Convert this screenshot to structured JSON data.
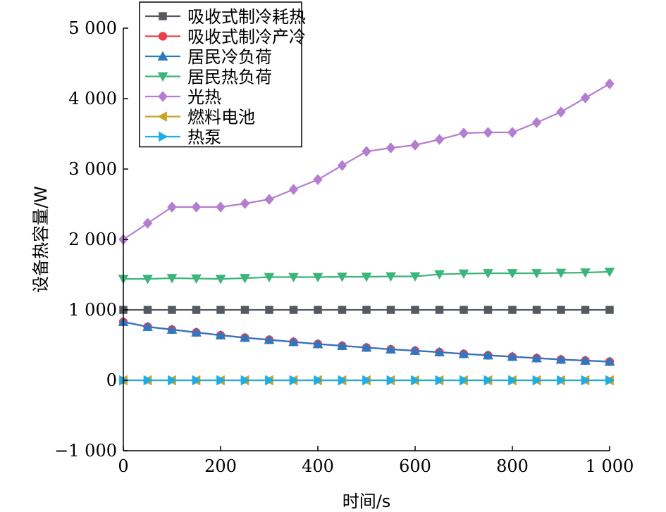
{
  "chart_data": {
    "type": "line",
    "title": "",
    "xlabel": "时间/s",
    "ylabel": "设备热容量/W",
    "xlim": [
      0,
      1000
    ],
    "ylim": [
      -1000,
      5000
    ],
    "xticks": [
      0,
      200,
      400,
      600,
      800,
      1000
    ],
    "xtick_labels": [
      "0",
      "200",
      "400",
      "600",
      "800",
      "1 000"
    ],
    "yticks": [
      -1000,
      0,
      1000,
      2000,
      3000,
      4000,
      5000
    ],
    "ytick_labels": [
      "−1 000",
      "0",
      "1 000",
      "2 000",
      "3 000",
      "4 000",
      "5 000"
    ],
    "grid": false,
    "legend_position": "top-left",
    "x": [
      0,
      50,
      100,
      150,
      200,
      250,
      300,
      350,
      400,
      450,
      500,
      550,
      600,
      650,
      700,
      750,
      800,
      850,
      900,
      950,
      1000
    ],
    "series": [
      {
        "name": "吸收式制冷耗热",
        "color": "#555a60",
        "marker": "square",
        "values": [
          1000,
          1000,
          1000,
          1000,
          1000,
          1000,
          1000,
          1000,
          1000,
          1000,
          1000,
          1000,
          1000,
          1000,
          1000,
          1000,
          1000,
          1000,
          1000,
          1000,
          1000
        ]
      },
      {
        "name": "吸收式制冷产冷",
        "color": "#e8414b",
        "marker": "circle",
        "values": [
          830,
          760,
          720,
          680,
          640,
          605,
          575,
          545,
          515,
          490,
          465,
          440,
          420,
          400,
          375,
          355,
          335,
          315,
          295,
          280,
          265
        ]
      },
      {
        "name": "居民冷负荷",
        "color": "#2f77c1",
        "marker": "triangle-up",
        "values": [
          830,
          760,
          720,
          680,
          640,
          605,
          575,
          545,
          515,
          490,
          465,
          440,
          420,
          400,
          375,
          355,
          335,
          315,
          295,
          280,
          265
        ]
      },
      {
        "name": "居民热负荷",
        "color": "#3bb57a",
        "marker": "triangle-down",
        "values": [
          1440,
          1440,
          1450,
          1445,
          1440,
          1450,
          1465,
          1465,
          1465,
          1470,
          1470,
          1475,
          1475,
          1505,
          1515,
          1520,
          1520,
          1520,
          1525,
          1530,
          1540
        ]
      },
      {
        "name": "光热",
        "color": "#b47ed0",
        "marker": "diamond",
        "values": [
          2000,
          2230,
          2460,
          2460,
          2460,
          2510,
          2570,
          2710,
          2850,
          3050,
          3250,
          3300,
          3340,
          3420,
          3510,
          3520,
          3520,
          3660,
          3810,
          4010,
          4210
        ]
      },
      {
        "name": "燃料电池",
        "color": "#c9a227",
        "marker": "triangle-left",
        "values": [
          0,
          0,
          0,
          0,
          0,
          0,
          0,
          0,
          0,
          0,
          0,
          0,
          0,
          0,
          0,
          0,
          0,
          0,
          0,
          0,
          0
        ]
      },
      {
        "name": "热泵",
        "color": "#1eaee3",
        "marker": "triangle-right",
        "values": [
          0,
          0,
          0,
          0,
          0,
          0,
          0,
          0,
          0,
          0,
          0,
          0,
          0,
          0,
          0,
          0,
          0,
          0,
          0,
          0,
          0
        ]
      }
    ]
  }
}
